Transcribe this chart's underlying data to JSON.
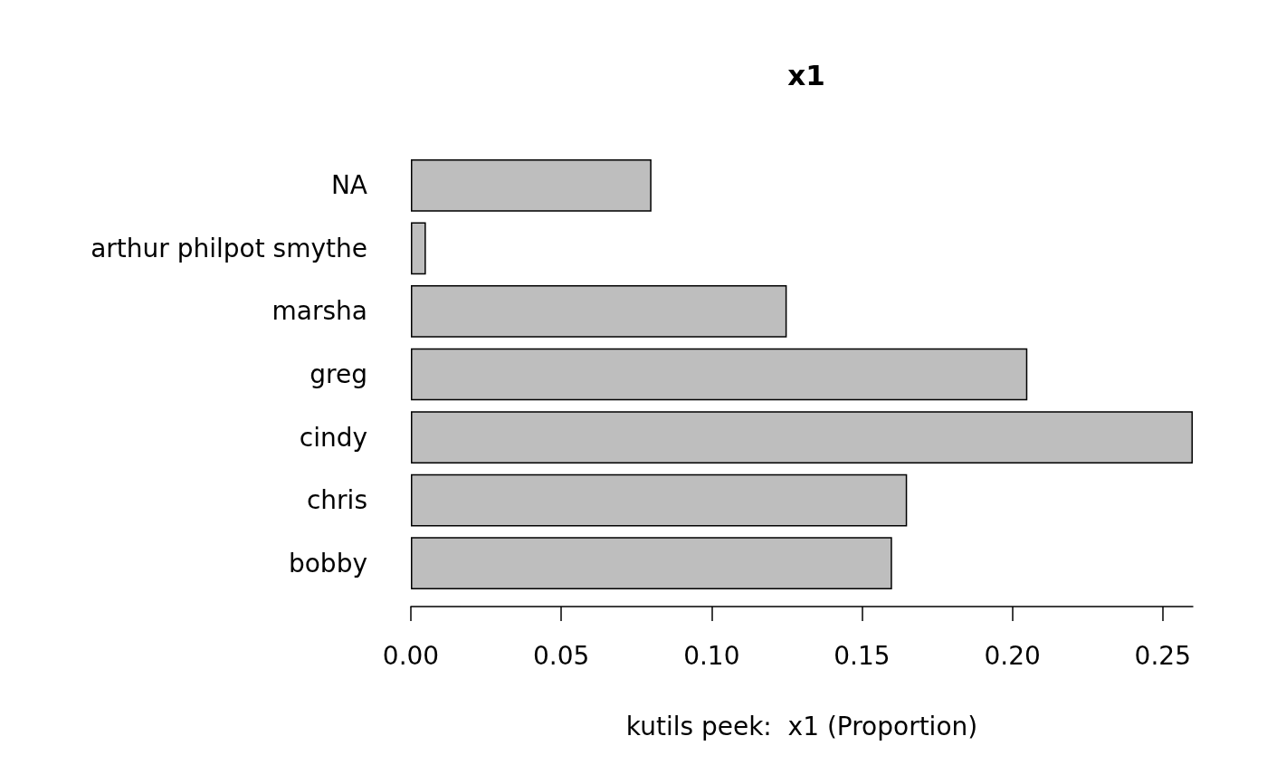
{
  "chart_data": {
    "type": "bar",
    "orientation": "horizontal",
    "title": "x1",
    "xlabel": "kutils peek:  x1 (Proportion)",
    "categories": [
      "NA",
      "arthur philpot smythe",
      "marsha",
      "greg",
      "cindy",
      "chris",
      "bobby"
    ],
    "values": [
      0.08,
      0.005,
      0.125,
      0.205,
      0.26,
      0.165,
      0.16
    ],
    "color": "#bebebe",
    "xlim": [
      0,
      0.26
    ],
    "xticks": [
      {
        "value": 0,
        "label": "0.00"
      },
      0.05,
      {
        "value": 0.1,
        "label": "0.10"
      },
      0.15,
      {
        "value": 0.2,
        "label": "0.20"
      },
      0.25
    ],
    "grid": false
  }
}
